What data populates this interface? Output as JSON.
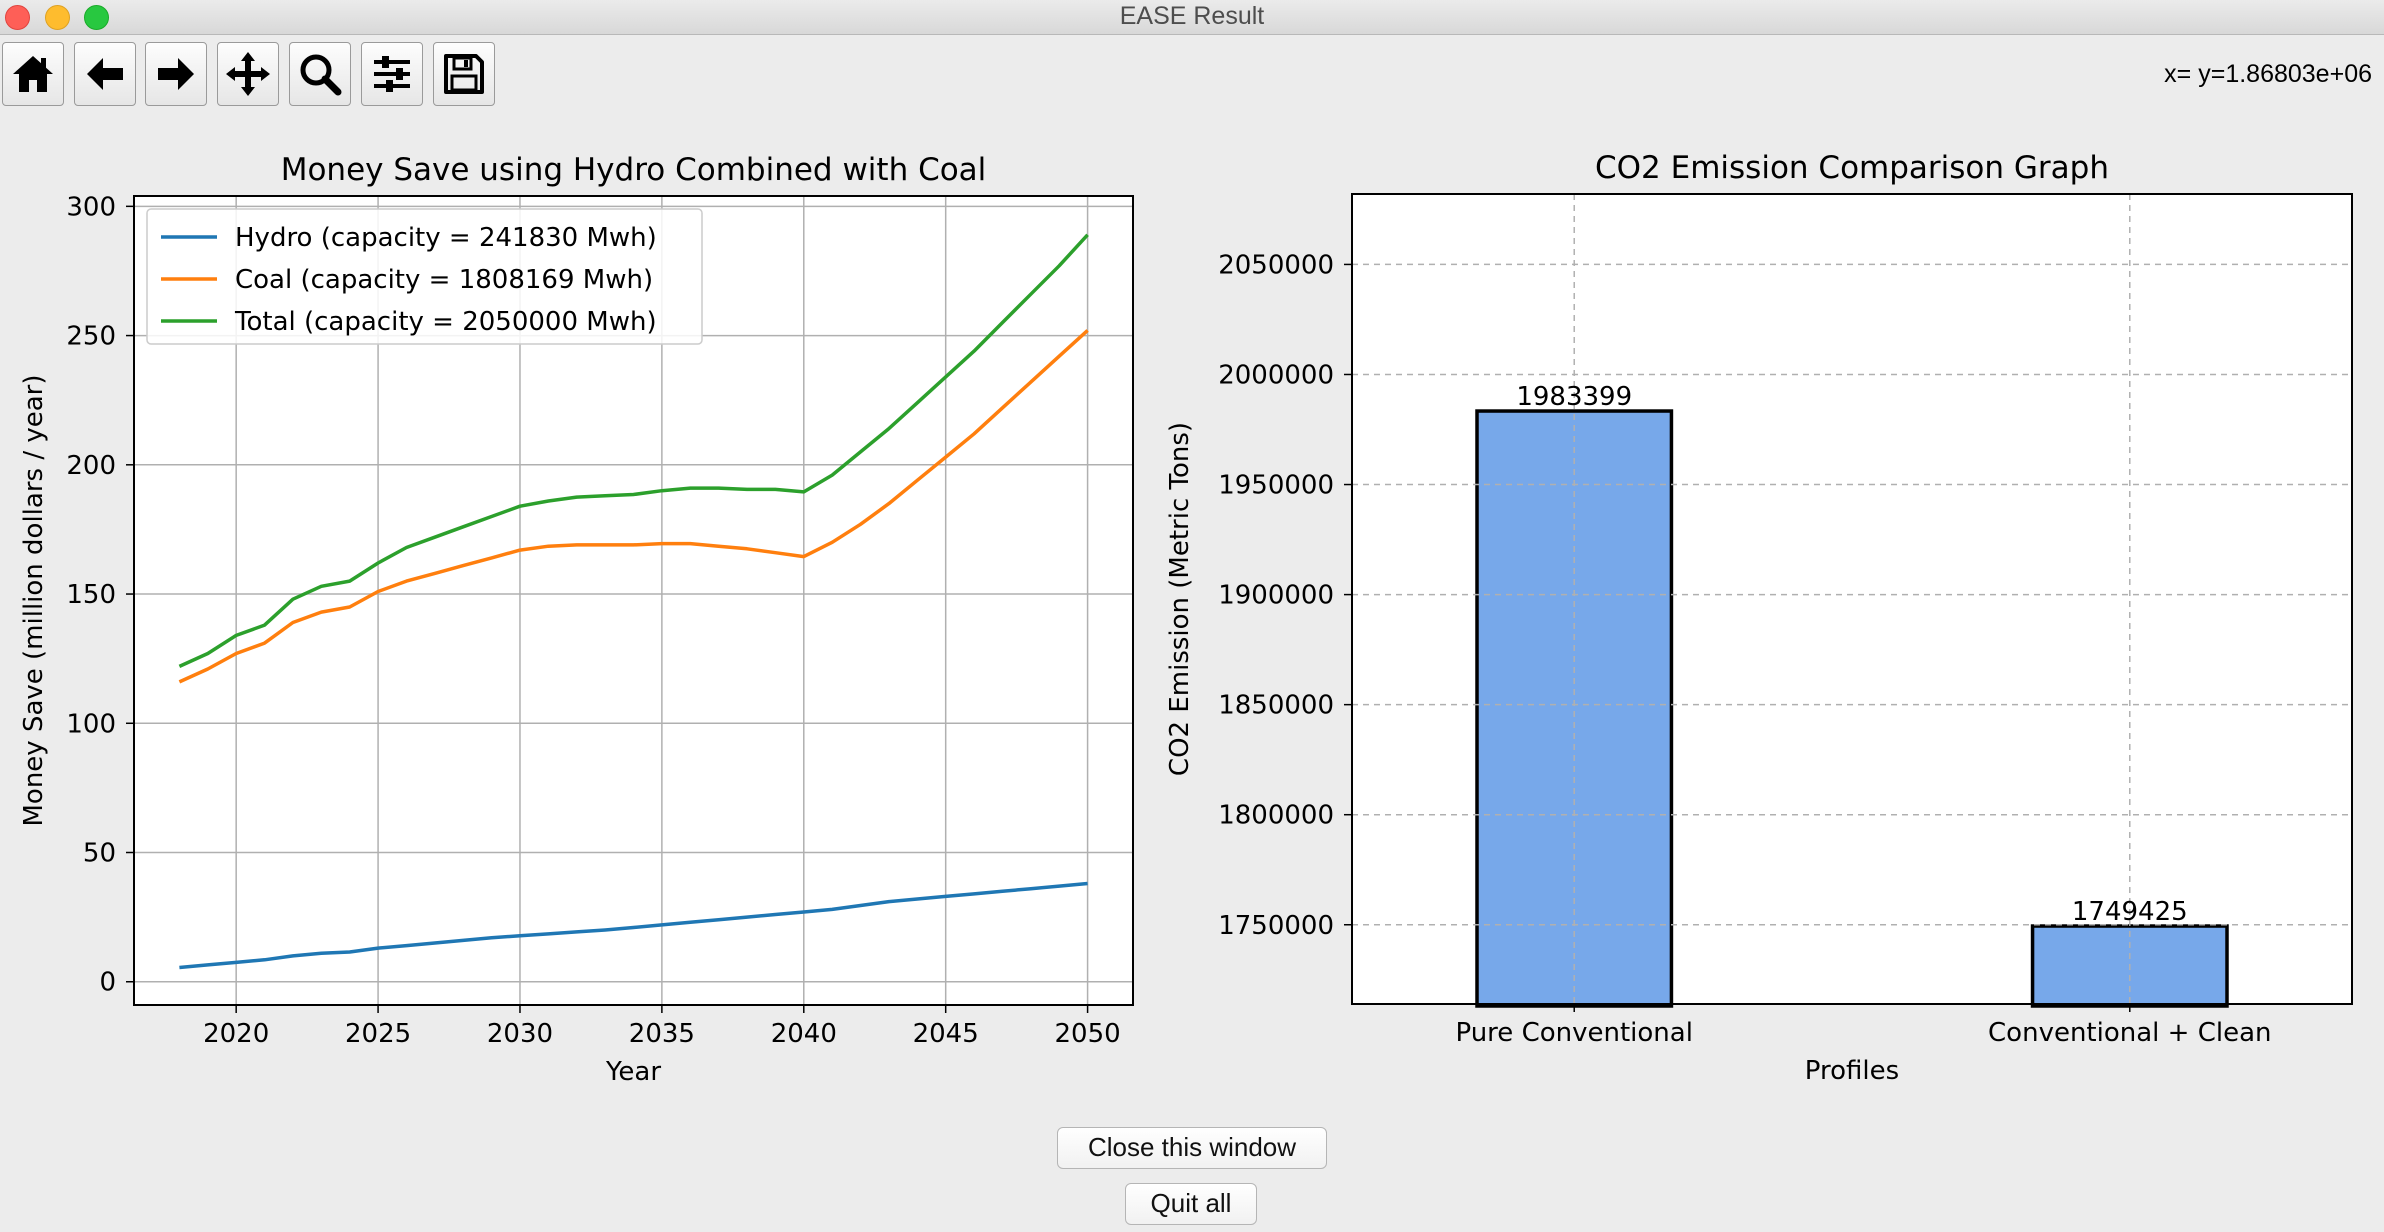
{
  "window": {
    "title": "EASE Result"
  },
  "toolbar": {
    "buttons": [
      {
        "name": "home-button",
        "icon": "home-icon"
      },
      {
        "name": "back-button",
        "icon": "arrow-left-icon"
      },
      {
        "name": "forward-button",
        "icon": "arrow-right-icon"
      },
      {
        "name": "pan-button",
        "icon": "move-icon"
      },
      {
        "name": "zoom-button",
        "icon": "magnifier-icon"
      },
      {
        "name": "configure-subplots-button",
        "icon": "sliders-icon"
      },
      {
        "name": "save-button",
        "icon": "floppy-disk-icon"
      }
    ],
    "coords": "x= y=1.86803e+06"
  },
  "buttons": {
    "close": "Close this window",
    "quit": "Quit all"
  },
  "chart_data": [
    {
      "type": "line",
      "title": "Money Save using Hydro Combined with Coal",
      "xlabel": "Year",
      "ylabel": "Money Save (million dollars / year)",
      "xlim": [
        2016.4,
        2051.6
      ],
      "ylim": [
        -9,
        304
      ],
      "xticks": [
        2020,
        2025,
        2030,
        2035,
        2040,
        2045,
        2050
      ],
      "yticks": [
        0,
        50,
        100,
        150,
        200,
        250,
        300
      ],
      "grid": true,
      "legend_position": "upper-left",
      "x": [
        2018,
        2019,
        2020,
        2021,
        2022,
        2023,
        2024,
        2025,
        2026,
        2027,
        2028,
        2029,
        2030,
        2031,
        2032,
        2033,
        2034,
        2035,
        2036,
        2037,
        2038,
        2039,
        2040,
        2041,
        2042,
        2043,
        2044,
        2045,
        2046,
        2047,
        2048,
        2049,
        2050
      ],
      "series": [
        {
          "name": "Hydro (capacity = 241830 Mwh)",
          "color": "#1f77b4",
          "values": [
            5.5,
            6.5,
            7.5,
            8.5,
            10,
            11,
            11.5,
            13,
            14,
            15,
            16,
            17,
            17.8,
            18.5,
            19.3,
            20,
            21,
            22,
            23,
            24,
            25,
            26,
            27,
            28,
            29.5,
            31,
            32,
            33,
            34,
            35,
            36,
            37,
            38
          ]
        },
        {
          "name": "Coal (capacity = 1808169 Mwh)",
          "color": "#ff7f0e",
          "values": [
            116,
            121,
            127,
            131,
            139,
            143,
            145,
            151,
            155,
            158,
            161,
            164,
            167,
            168.5,
            169,
            169,
            169,
            169.5,
            169.5,
            168.5,
            167.5,
            166,
            164.5,
            170,
            177,
            185,
            194,
            203,
            212,
            222,
            232,
            242,
            252
          ]
        },
        {
          "name": "Total (capacity = 2050000 Mwh)",
          "color": "#2ca02c",
          "values": [
            122,
            127,
            134,
            138,
            148,
            153,
            155,
            162,
            168,
            172,
            176,
            180,
            184,
            186,
            187.5,
            188,
            188.5,
            190,
            191,
            191,
            190.5,
            190.5,
            189.5,
            196,
            205,
            214,
            224,
            234,
            244,
            255,
            266,
            277,
            289
          ]
        }
      ]
    },
    {
      "type": "bar",
      "title": "CO2 Emission Comparison Graph",
      "xlabel": "Profiles",
      "ylabel": "CO2 Emission (Metric Tons)",
      "categories": [
        "Pure Conventional",
        "Conventional + Clean"
      ],
      "values": [
        1983399,
        1749425
      ],
      "labels": [
        "1983399",
        "1749425"
      ],
      "yticks": [
        1750000,
        1800000,
        1850000,
        1900000,
        1950000,
        2000000,
        2050000
      ],
      "ylim": [
        1714000,
        2082000
      ],
      "grid": true,
      "bar_color": "#77a8ea"
    }
  ]
}
